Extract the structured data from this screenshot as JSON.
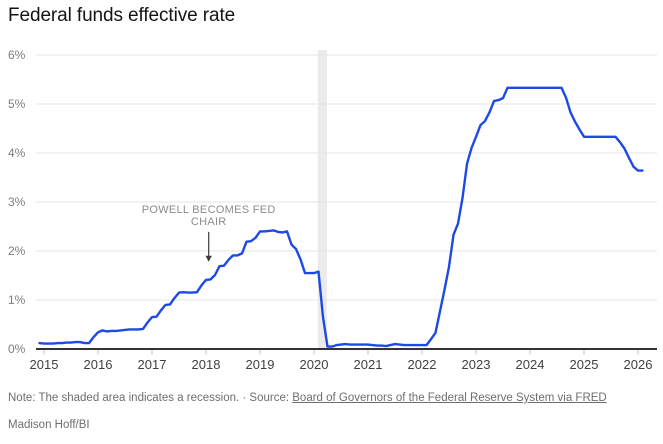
{
  "chart_data": {
    "type": "line",
    "title": "Federal funds effective rate",
    "unit": "%",
    "ylim": [
      0,
      6
    ],
    "y_ticks": [
      "0%",
      "1%",
      "2%",
      "3%",
      "4%",
      "5%",
      "6%"
    ],
    "x_ticks": [
      2015,
      2016,
      2017,
      2018,
      2019,
      2020,
      2021,
      2022,
      2023,
      2024,
      2025,
      2026
    ],
    "grid": "horizontal-only",
    "legend": "none",
    "series": [
      {
        "name": "Federal funds effective rate (monthly, %)",
        "x_start": 2014.9167,
        "x_step": 0.0833333,
        "values": [
          0.12,
          0.11,
          0.11,
          0.11,
          0.12,
          0.12,
          0.13,
          0.13,
          0.14,
          0.14,
          0.12,
          0.12,
          0.24,
          0.34,
          0.38,
          0.36,
          0.37,
          0.37,
          0.38,
          0.39,
          0.4,
          0.4,
          0.4,
          0.41,
          0.54,
          0.65,
          0.66,
          0.79,
          0.9,
          0.91,
          1.04,
          1.15,
          1.16,
          1.15,
          1.15,
          1.16,
          1.3,
          1.41,
          1.42,
          1.51,
          1.69,
          1.7,
          1.82,
          1.91,
          1.91,
          1.95,
          2.19,
          2.2,
          2.27,
          2.4,
          2.4,
          2.41,
          2.42,
          2.39,
          2.38,
          2.4,
          2.13,
          2.04,
          1.83,
          1.55,
          1.55,
          1.55,
          1.58,
          0.65,
          0.05,
          0.05,
          0.08,
          0.09,
          0.1,
          0.09,
          0.09,
          0.09,
          0.09,
          0.09,
          0.08,
          0.07,
          0.07,
          0.06,
          0.08,
          0.1,
          0.09,
          0.08,
          0.08,
          0.08,
          0.08,
          0.08,
          0.08,
          0.2,
          0.33,
          0.77,
          1.21,
          1.68,
          2.33,
          2.56,
          3.08,
          3.78,
          4.1,
          4.33,
          4.57,
          4.65,
          4.83,
          5.06,
          5.08,
          5.12,
          5.33,
          5.33,
          5.33,
          5.33,
          5.33,
          5.33,
          5.33,
          5.33,
          5.33,
          5.33,
          5.33,
          5.33,
          5.33,
          5.13,
          4.83,
          4.64,
          4.48,
          4.33,
          4.33,
          4.33,
          4.33,
          4.33,
          4.33,
          4.33,
          4.33,
          4.22,
          4.09,
          3.9,
          3.72,
          3.64,
          3.64
        ]
      }
    ],
    "recession_band": {
      "start_year": 2020.07,
      "end_year": 2020.24
    },
    "colors": {
      "line": "#1d49e5",
      "band": "#ebebeb",
      "grid": "#e4e4e4",
      "axis": "#161616",
      "tick": "#c0c0c0",
      "y_label": "#7d7d7d",
      "x_label": "#414141",
      "annotation": "#8c8c8c",
      "arrow": "#3c3c3c"
    }
  },
  "annotation": {
    "line1": "POWELL BECOMES FED",
    "line2": "CHAIR",
    "x_year": 2018.05,
    "arrow_from_rate": 2.39,
    "arrow_to_rate": 1.78
  },
  "footer": {
    "note_prefix": "Note: The shaded area indicates a recession. · Source: ",
    "source_link_text": "Board of Governors of the Federal Reserve System via FRED",
    "credit": "Madison Hoff/BI"
  }
}
